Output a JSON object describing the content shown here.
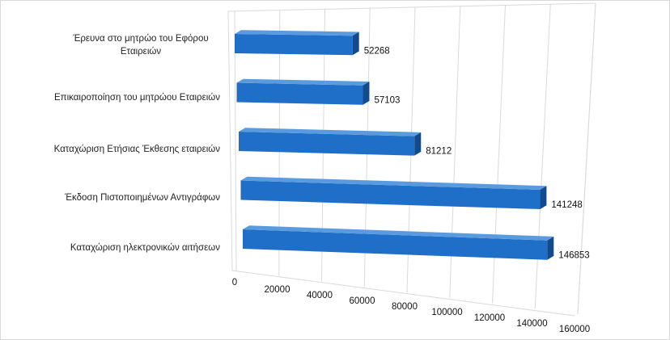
{
  "chart_data": {
    "type": "bar",
    "orientation": "horizontal",
    "style": "3d-perspective",
    "categories": [
      "Έρευνα στο μητρώο του Εφόρου Εταιρειών",
      "Επικαιροποίηση του μητρώου Εταιρειών",
      "Καταχώριση Ετήσιας Έκθεσης εταιρειών",
      "Έκδοση Πιστοποιημένων Αντιγράφων",
      "Καταχώριση ηλεκτρονικών αιτήσεων"
    ],
    "category_lines": [
      [
        "Έρευνα στο μητρώο του Εφόρου",
        "Εταιρειών"
      ],
      [
        "Επικαιροποίηση του μητρώου Εταιρειών"
      ],
      [
        "Καταχώριση Ετήσιας Έκθεσης εταιρειών"
      ],
      [
        "Έκδοση Πιστοποιημένων Αντιγράφων"
      ],
      [
        "Καταχώριση ηλεκτρονικών αιτήσεων"
      ]
    ],
    "values": [
      52268,
      57103,
      81212,
      141248,
      146853
    ],
    "data_labels": [
      "52268",
      "57103",
      "81212",
      "141248",
      "146853"
    ],
    "x_ticks": [
      "0",
      "20000",
      "40000",
      "60000",
      "80000",
      "100000",
      "120000",
      "140000",
      "160000"
    ],
    "xlim": [
      0,
      160000
    ],
    "grid": true,
    "bar_color": "#1f6fc8",
    "bar_top_color": "#5a9be0",
    "bar_end_color": "#124a8c",
    "grid_color": "#d9d9d9",
    "title": "",
    "xlabel": "",
    "ylabel": ""
  }
}
